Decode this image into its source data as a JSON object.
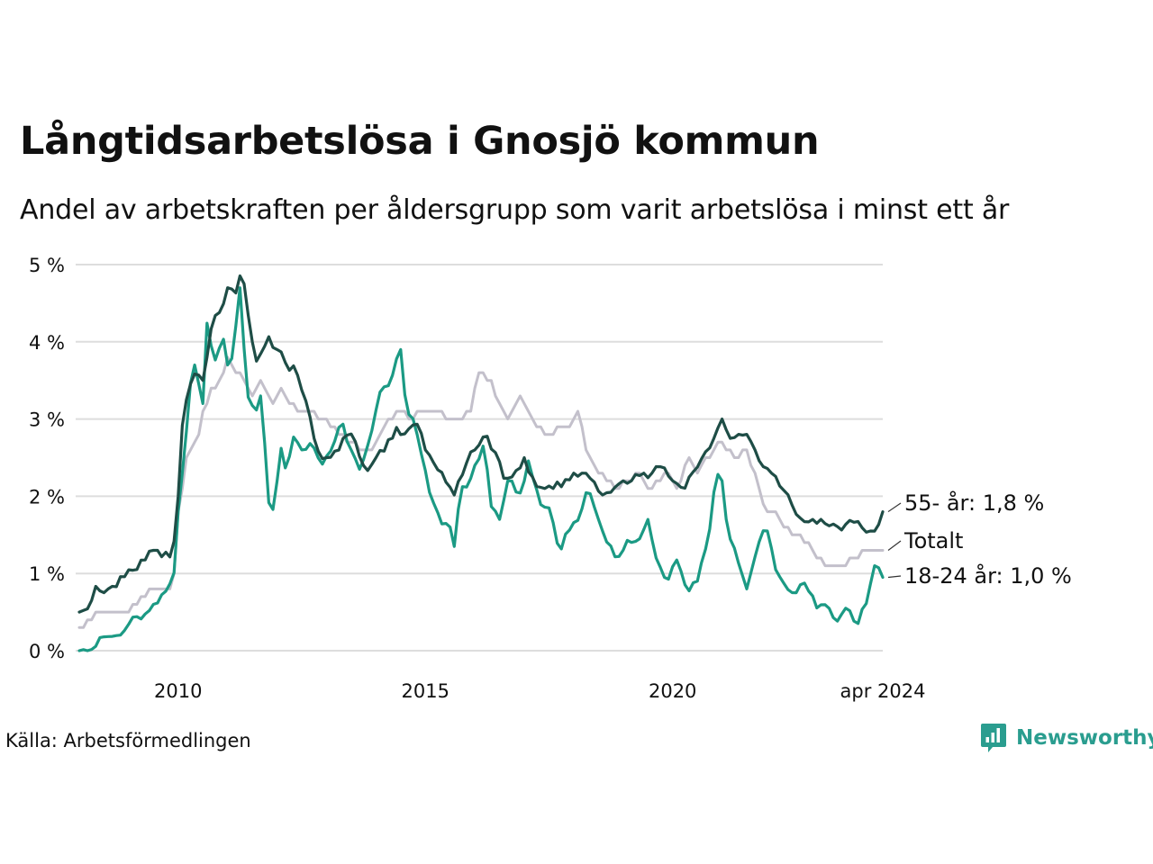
{
  "title": "Långtidsarbetslösa i Gnosjö kommun",
  "subtitle": "Andel av arbetskraften per åldersgrupp som varit arbetslösa i minst ett år",
  "source": "Källa: Arbetsförmedlingen",
  "brand": "Newsworthy",
  "colors": {
    "older": "#1e4d46",
    "total": "#c3c0cb",
    "young": "#1b9a84",
    "grid": "#dddddd",
    "brand": "#2a9d8f"
  },
  "chart_data": {
    "type": "line",
    "x_start": 2008.0,
    "x_end": 2024.25,
    "step_months": 1,
    "ylim": [
      0,
      5
    ],
    "y_ticks": [
      0,
      1,
      2,
      3,
      4,
      5
    ],
    "y_tick_labels": [
      "0 %",
      "1 %",
      "2 %",
      "3 %",
      "4 %",
      "5 %"
    ],
    "x_ticks": [
      2010,
      2015,
      2020,
      2024.25
    ],
    "x_tick_labels": [
      "2010",
      "2015",
      "2020",
      "apr 2024"
    ],
    "series": [
      {
        "key": "total",
        "name": "Totalt",
        "end_label": "Totalt",
        "anchors": [
          [
            2008.0,
            0.3
          ],
          [
            2008.4,
            0.5
          ],
          [
            2008.8,
            0.5
          ],
          [
            2009.0,
            0.5
          ],
          [
            2009.3,
            0.7
          ],
          [
            2009.5,
            0.8
          ],
          [
            2009.9,
            0.8
          ],
          [
            2010.0,
            1.8
          ],
          [
            2010.2,
            2.6
          ],
          [
            2010.4,
            2.8
          ],
          [
            2010.5,
            3.1
          ],
          [
            2010.7,
            3.4
          ],
          [
            2010.9,
            3.5
          ],
          [
            2011.0,
            3.8
          ],
          [
            2011.2,
            3.6
          ],
          [
            2011.5,
            3.3
          ],
          [
            2011.7,
            3.5
          ],
          [
            2011.9,
            3.2
          ],
          [
            2012.1,
            3.4
          ],
          [
            2012.3,
            3.2
          ],
          [
            2012.5,
            3.1
          ],
          [
            2012.7,
            3.1
          ],
          [
            2012.9,
            3.0
          ],
          [
            2013.1,
            2.9
          ],
          [
            2013.3,
            2.8
          ],
          [
            2013.5,
            2.7
          ],
          [
            2013.7,
            2.6
          ],
          [
            2013.9,
            2.6
          ],
          [
            2014.1,
            2.8
          ],
          [
            2014.3,
            3.0
          ],
          [
            2014.5,
            3.1
          ],
          [
            2014.7,
            3.0
          ],
          [
            2014.9,
            3.1
          ],
          [
            2015.2,
            3.1
          ],
          [
            2015.5,
            3.0
          ],
          [
            2015.7,
            3.0
          ],
          [
            2015.9,
            3.1
          ],
          [
            2016.1,
            3.6
          ],
          [
            2016.3,
            3.5
          ],
          [
            2016.5,
            3.2
          ],
          [
            2016.7,
            3.0
          ],
          [
            2016.9,
            3.3
          ],
          [
            2017.1,
            3.1
          ],
          [
            2017.3,
            2.9
          ],
          [
            2017.5,
            2.8
          ],
          [
            2017.7,
            2.9
          ],
          [
            2017.9,
            2.9
          ],
          [
            2018.1,
            3.1
          ],
          [
            2018.3,
            2.5
          ],
          [
            2018.5,
            2.3
          ],
          [
            2018.7,
            2.2
          ],
          [
            2018.9,
            2.1
          ],
          [
            2019.1,
            2.2
          ],
          [
            2019.3,
            2.3
          ],
          [
            2019.5,
            2.1
          ],
          [
            2019.7,
            2.2
          ],
          [
            2019.9,
            2.3
          ],
          [
            2020.1,
            2.1
          ],
          [
            2020.3,
            2.5
          ],
          [
            2020.5,
            2.3
          ],
          [
            2020.7,
            2.5
          ],
          [
            2020.9,
            2.7
          ],
          [
            2021.1,
            2.6
          ],
          [
            2021.3,
            2.5
          ],
          [
            2021.5,
            2.6
          ],
          [
            2021.7,
            2.2
          ],
          [
            2021.9,
            1.8
          ],
          [
            2022.1,
            1.8
          ],
          [
            2022.3,
            1.6
          ],
          [
            2022.5,
            1.5
          ],
          [
            2022.7,
            1.4
          ],
          [
            2022.9,
            1.2
          ],
          [
            2023.1,
            1.1
          ],
          [
            2023.4,
            1.1
          ],
          [
            2023.7,
            1.2
          ],
          [
            2023.9,
            1.3
          ],
          [
            2024.25,
            1.3
          ]
        ]
      },
      {
        "key": "young",
        "name": "18-24 år",
        "end_label": "18-24 år: 1,0 %",
        "anchors": [
          [
            2008.0,
            0.0
          ],
          [
            2008.3,
            0.0
          ],
          [
            2008.4,
            0.17
          ],
          [
            2008.8,
            0.17
          ],
          [
            2009.1,
            0.45
          ],
          [
            2009.3,
            0.45
          ],
          [
            2009.5,
            0.6
          ],
          [
            2009.7,
            0.75
          ],
          [
            2009.9,
            0.85
          ],
          [
            2010.0,
            1.8
          ],
          [
            2010.1,
            2.4
          ],
          [
            2010.3,
            3.8
          ],
          [
            2010.5,
            3.2
          ],
          [
            2010.6,
            4.45
          ],
          [
            2010.7,
            3.7
          ],
          [
            2010.9,
            4.1
          ],
          [
            2011.0,
            3.7
          ],
          [
            2011.1,
            3.8
          ],
          [
            2011.25,
            4.7
          ],
          [
            2011.4,
            3.3
          ],
          [
            2011.6,
            3.1
          ],
          [
            2011.7,
            3.4
          ],
          [
            2011.8,
            2.0
          ],
          [
            2011.9,
            1.75
          ],
          [
            2012.1,
            2.7
          ],
          [
            2012.2,
            2.2
          ],
          [
            2012.3,
            2.8
          ],
          [
            2012.5,
            2.6
          ],
          [
            2012.7,
            2.7
          ],
          [
            2012.9,
            2.4
          ],
          [
            2013.1,
            2.6
          ],
          [
            2013.3,
            3.0
          ],
          [
            2013.5,
            2.6
          ],
          [
            2013.7,
            2.3
          ],
          [
            2013.9,
            2.8
          ],
          [
            2014.1,
            3.4
          ],
          [
            2014.3,
            3.5
          ],
          [
            2014.5,
            3.9
          ],
          [
            2014.6,
            3.2
          ],
          [
            2014.8,
            2.9
          ],
          [
            2014.9,
            2.6
          ],
          [
            2015.1,
            2.0
          ],
          [
            2015.3,
            1.65
          ],
          [
            2015.5,
            1.6
          ],
          [
            2015.6,
            1.3
          ],
          [
            2015.7,
            2.1
          ],
          [
            2015.9,
            2.2
          ],
          [
            2016.0,
            2.4
          ],
          [
            2016.2,
            2.7
          ],
          [
            2016.3,
            1.9
          ],
          [
            2016.5,
            1.7
          ],
          [
            2016.7,
            2.3
          ],
          [
            2016.9,
            2.0
          ],
          [
            2017.1,
            2.5
          ],
          [
            2017.3,
            1.9
          ],
          [
            2017.5,
            1.85
          ],
          [
            2017.7,
            1.3
          ],
          [
            2017.9,
            1.55
          ],
          [
            2018.1,
            1.7
          ],
          [
            2018.3,
            2.1
          ],
          [
            2018.5,
            1.7
          ],
          [
            2018.7,
            1.35
          ],
          [
            2018.9,
            1.2
          ],
          [
            2019.1,
            1.45
          ],
          [
            2019.3,
            1.4
          ],
          [
            2019.5,
            1.7
          ],
          [
            2019.7,
            1.1
          ],
          [
            2019.9,
            0.9
          ],
          [
            2020.1,
            1.2
          ],
          [
            2020.3,
            0.75
          ],
          [
            2020.5,
            0.9
          ],
          [
            2020.7,
            1.4
          ],
          [
            2020.9,
            2.3
          ],
          [
            2021.0,
            2.2
          ],
          [
            2021.1,
            1.6
          ],
          [
            2021.3,
            1.2
          ],
          [
            2021.5,
            0.8
          ],
          [
            2021.7,
            1.3
          ],
          [
            2021.9,
            1.6
          ],
          [
            2022.1,
            1.0
          ],
          [
            2022.3,
            0.8
          ],
          [
            2022.5,
            0.75
          ],
          [
            2022.7,
            0.9
          ],
          [
            2022.9,
            0.55
          ],
          [
            2023.1,
            0.6
          ],
          [
            2023.3,
            0.35
          ],
          [
            2023.5,
            0.55
          ],
          [
            2023.7,
            0.35
          ],
          [
            2023.9,
            0.55
          ],
          [
            2024.05,
            1.1
          ],
          [
            2024.15,
            1.1
          ],
          [
            2024.25,
            0.95
          ]
        ]
      },
      {
        "key": "older",
        "name": "55- år",
        "end_label": "55- år: 1,8 %",
        "anchors": [
          [
            2008.0,
            0.5
          ],
          [
            2008.2,
            0.55
          ],
          [
            2008.3,
            0.85
          ],
          [
            2008.5,
            0.75
          ],
          [
            2008.7,
            0.85
          ],
          [
            2008.9,
            0.95
          ],
          [
            2009.1,
            1.05
          ],
          [
            2009.3,
            1.15
          ],
          [
            2009.5,
            1.3
          ],
          [
            2009.7,
            1.2
          ],
          [
            2009.9,
            1.3
          ],
          [
            2010.0,
            2.0
          ],
          [
            2010.1,
            3.1
          ],
          [
            2010.3,
            3.6
          ],
          [
            2010.5,
            3.5
          ],
          [
            2010.7,
            4.3
          ],
          [
            2010.9,
            4.45
          ],
          [
            2011.0,
            4.7
          ],
          [
            2011.15,
            4.6
          ],
          [
            2011.3,
            4.9
          ],
          [
            2011.5,
            4.0
          ],
          [
            2011.6,
            3.7
          ],
          [
            2011.8,
            4.1
          ],
          [
            2012.0,
            3.9
          ],
          [
            2012.2,
            3.7
          ],
          [
            2012.4,
            3.6
          ],
          [
            2012.6,
            3.2
          ],
          [
            2012.8,
            2.6
          ],
          [
            2013.0,
            2.5
          ],
          [
            2013.2,
            2.6
          ],
          [
            2013.4,
            2.8
          ],
          [
            2013.6,
            2.7
          ],
          [
            2013.8,
            2.3
          ],
          [
            2014.0,
            2.5
          ],
          [
            2014.2,
            2.6
          ],
          [
            2014.4,
            2.9
          ],
          [
            2014.6,
            2.8
          ],
          [
            2014.8,
            3.0
          ],
          [
            2015.0,
            2.6
          ],
          [
            2015.2,
            2.4
          ],
          [
            2015.4,
            2.2
          ],
          [
            2015.6,
            2.0
          ],
          [
            2015.8,
            2.4
          ],
          [
            2016.0,
            2.6
          ],
          [
            2016.2,
            2.8
          ],
          [
            2016.4,
            2.6
          ],
          [
            2016.6,
            2.2
          ],
          [
            2016.8,
            2.3
          ],
          [
            2017.0,
            2.5
          ],
          [
            2017.2,
            2.2
          ],
          [
            2017.4,
            2.1
          ],
          [
            2017.6,
            2.1
          ],
          [
            2017.8,
            2.2
          ],
          [
            2018.0,
            2.3
          ],
          [
            2018.2,
            2.3
          ],
          [
            2018.4,
            2.2
          ],
          [
            2018.6,
            2.0
          ],
          [
            2018.8,
            2.1
          ],
          [
            2019.0,
            2.2
          ],
          [
            2019.2,
            2.2
          ],
          [
            2019.4,
            2.3
          ],
          [
            2019.6,
            2.3
          ],
          [
            2019.8,
            2.4
          ],
          [
            2020.0,
            2.2
          ],
          [
            2020.2,
            2.1
          ],
          [
            2020.4,
            2.3
          ],
          [
            2020.6,
            2.5
          ],
          [
            2020.8,
            2.7
          ],
          [
            2021.0,
            3.0
          ],
          [
            2021.2,
            2.7
          ],
          [
            2021.4,
            2.8
          ],
          [
            2021.6,
            2.7
          ],
          [
            2021.8,
            2.4
          ],
          [
            2022.0,
            2.3
          ],
          [
            2022.2,
            2.1
          ],
          [
            2022.4,
            1.9
          ],
          [
            2022.6,
            1.7
          ],
          [
            2022.8,
            1.7
          ],
          [
            2023.0,
            1.7
          ],
          [
            2023.2,
            1.6
          ],
          [
            2023.4,
            1.55
          ],
          [
            2023.6,
            1.7
          ],
          [
            2023.8,
            1.6
          ],
          [
            2024.0,
            1.55
          ],
          [
            2024.15,
            1.6
          ],
          [
            2024.25,
            1.8
          ]
        ]
      }
    ]
  }
}
